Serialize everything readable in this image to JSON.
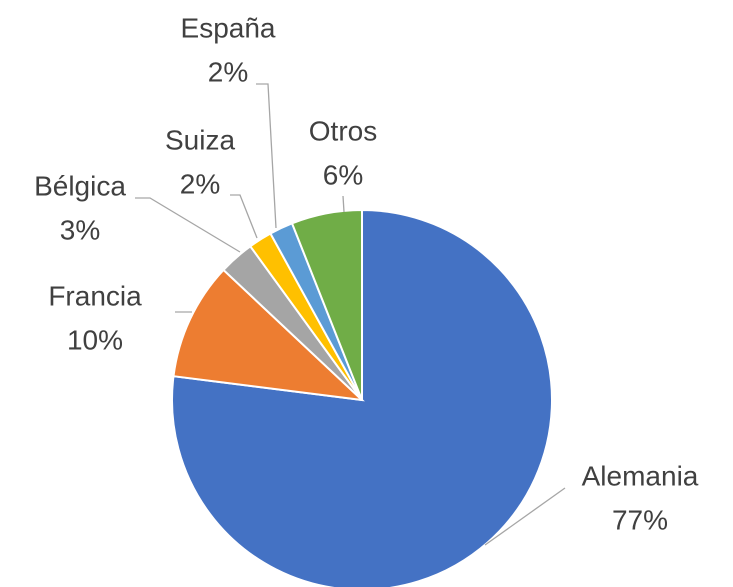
{
  "chart_data": {
    "type": "pie",
    "categories": [
      "Alemania",
      "Francia",
      "Bélgica",
      "Suiza",
      "España",
      "Otros"
    ],
    "values": [
      77,
      10,
      3,
      2,
      2,
      6
    ],
    "value_labels": [
      "77%",
      "10%",
      "3%",
      "2%",
      "2%",
      "6%"
    ],
    "colors": [
      "#4472c4",
      "#ed7d31",
      "#a5a5a5",
      "#ffc000",
      "#5b9bd5",
      "#70ad47"
    ]
  }
}
